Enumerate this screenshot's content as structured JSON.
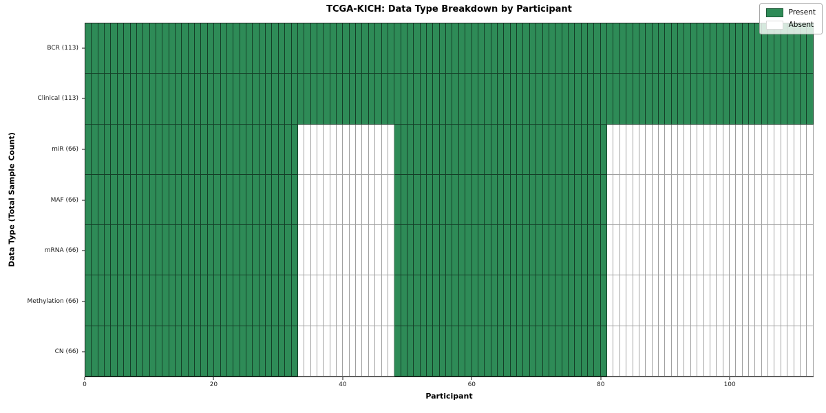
{
  "chart_data": {
    "type": "heatmap",
    "title": "TCGA-KICH: Data Type Breakdown by Participant",
    "xlabel": "Participant",
    "ylabel": "Data Type (Total Sample Count)",
    "x_range": [
      0,
      113
    ],
    "n_participants": 113,
    "x_ticks": [
      0,
      20,
      40,
      60,
      80,
      100
    ],
    "legend_position": "upper-right",
    "grid": "cell-borders",
    "colors": {
      "present": "#2e8b57",
      "present_edge": "rgba(0,0,0,0.55)",
      "absent": "#ffffff",
      "absent_edge": "#a0a0a0"
    },
    "rows": [
      {
        "data_type": "BCR",
        "label": "BCR (113)",
        "sample_count": 113,
        "present_ranges": [
          [
            0,
            113
          ]
        ]
      },
      {
        "data_type": "Clinical",
        "label": "Clinical (113)",
        "sample_count": 113,
        "present_ranges": [
          [
            0,
            113
          ]
        ]
      },
      {
        "data_type": "miR",
        "label": "miR (66)",
        "sample_count": 66,
        "present_ranges": [
          [
            0,
            33
          ],
          [
            48,
            81
          ]
        ]
      },
      {
        "data_type": "MAF",
        "label": "MAF (66)",
        "sample_count": 66,
        "present_ranges": [
          [
            0,
            33
          ],
          [
            48,
            81
          ]
        ]
      },
      {
        "data_type": "mRNA",
        "label": "mRNA (66)",
        "sample_count": 66,
        "present_ranges": [
          [
            0,
            33
          ],
          [
            48,
            81
          ]
        ]
      },
      {
        "data_type": "Methylation",
        "label": "Methylation (66)",
        "sample_count": 66,
        "present_ranges": [
          [
            0,
            33
          ],
          [
            48,
            81
          ]
        ]
      },
      {
        "data_type": "CN",
        "label": "CN (66)",
        "sample_count": 66,
        "present_ranges": [
          [
            0,
            33
          ],
          [
            48,
            81
          ]
        ]
      }
    ],
    "legend": [
      {
        "label": "Present",
        "color": "#2e8b57"
      },
      {
        "label": "Absent",
        "color": "#ffffff"
      }
    ]
  }
}
